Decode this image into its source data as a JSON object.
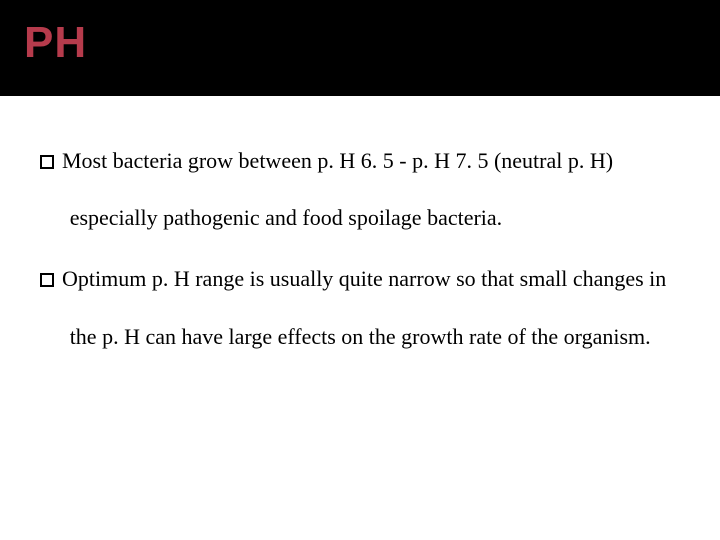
{
  "slide": {
    "title": "PH",
    "title_color": "#b63b4c",
    "title_band_bg": "#000000",
    "body_bg": "#ffffff",
    "title_fontsize": 44,
    "body_fontsize": 22,
    "body_line_height": 2.6,
    "bullets": [
      {
        "text": "Most bacteria grow between p. H 6. 5 - p. H 7. 5 (neutral p. H) especially pathogenic and food spoilage bacteria."
      },
      {
        "text": "Optimum p. H range is usually quite narrow so that small changes in the p. H can have large effects on the growth rate of the organism."
      }
    ]
  }
}
